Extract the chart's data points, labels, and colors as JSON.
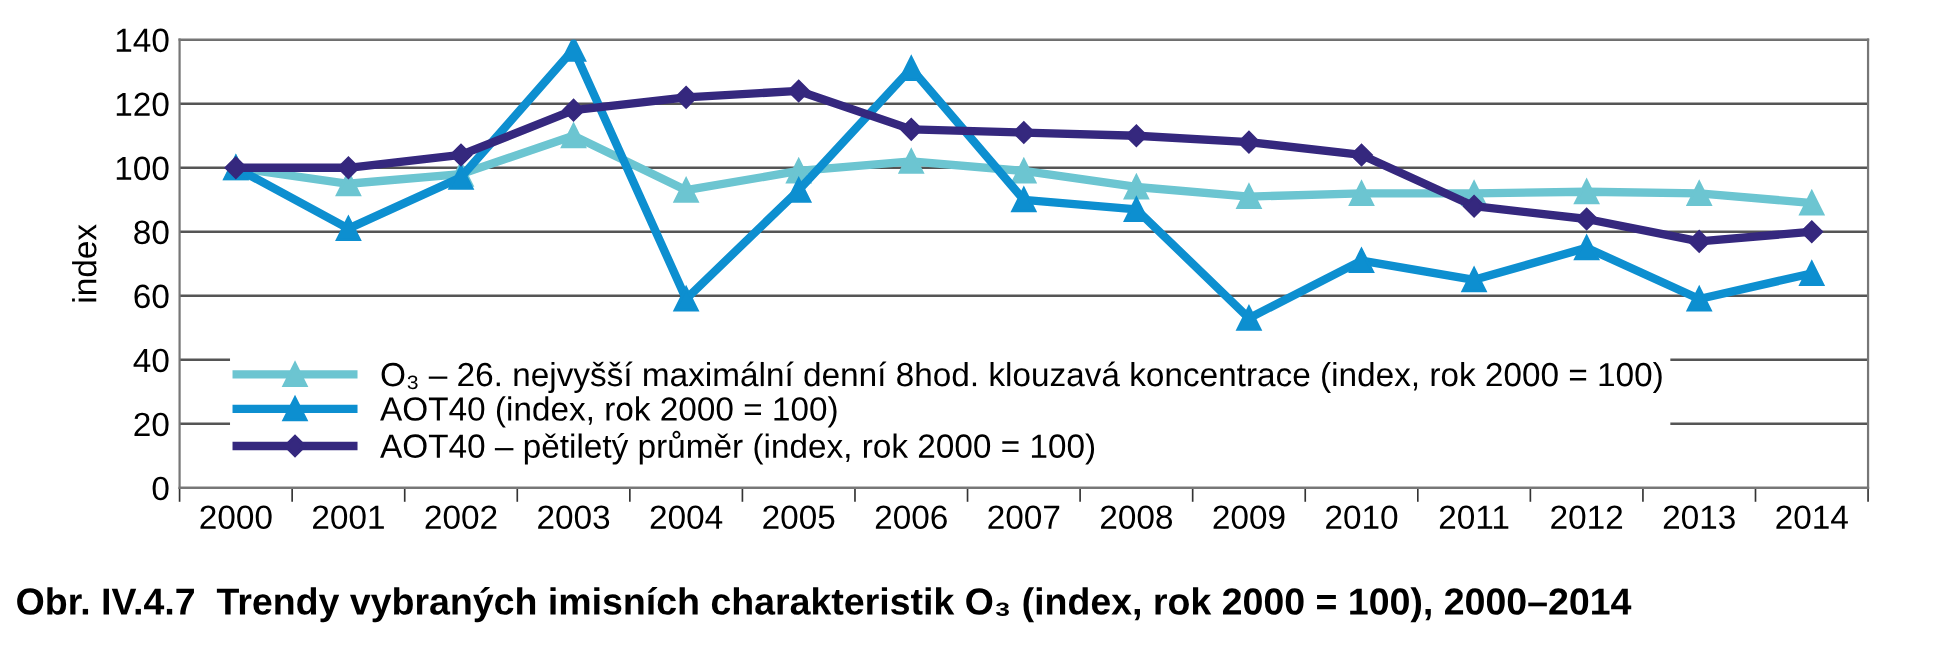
{
  "chart_data": {
    "type": "line",
    "title": "Obr. IV.4.7  Trendy vybraných imisních charakteristik O₃ (index, rok 2000 = 100), 2000–2014",
    "ylabel": "index",
    "categories": [
      "2000",
      "2001",
      "2002",
      "2003",
      "2004",
      "2005",
      "2006",
      "2007",
      "2008",
      "2009",
      "2010",
      "2011",
      "2012",
      "2013",
      "2014"
    ],
    "series": [
      {
        "name": "O₃ – 26. nejvyšší maximální denní 8hod. klouzavá koncentrace (index, rok 2000 = 100)",
        "color": "#6cc5d1",
        "marker": "triangle",
        "values": [
          100,
          95,
          98,
          110,
          93,
          99,
          102,
          99,
          94,
          91,
          92,
          92,
          92.5,
          92,
          89
        ]
      },
      {
        "name": "AOT40 (index, rok 2000 = 100)",
        "color": "#0d8fd0",
        "marker": "triangle",
        "values": [
          100,
          81,
          97,
          137,
          59,
          93,
          131,
          90,
          87,
          53,
          71,
          65,
          75,
          59,
          67
        ]
      },
      {
        "name": "AOT40 – pětiletý průměr (index, rok 2000 = 100)",
        "color": "#35287e",
        "marker": "diamond",
        "values": [
          100,
          100,
          104,
          118,
          122,
          124,
          112,
          111,
          110,
          108,
          104,
          88,
          84,
          77,
          80
        ]
      }
    ],
    "ylim": [
      0,
      140
    ],
    "yticks": [
      0,
      20,
      40,
      60,
      80,
      100,
      120,
      140
    ],
    "grid": "y",
    "legend": "bottom left",
    "line_style": "solid"
  }
}
